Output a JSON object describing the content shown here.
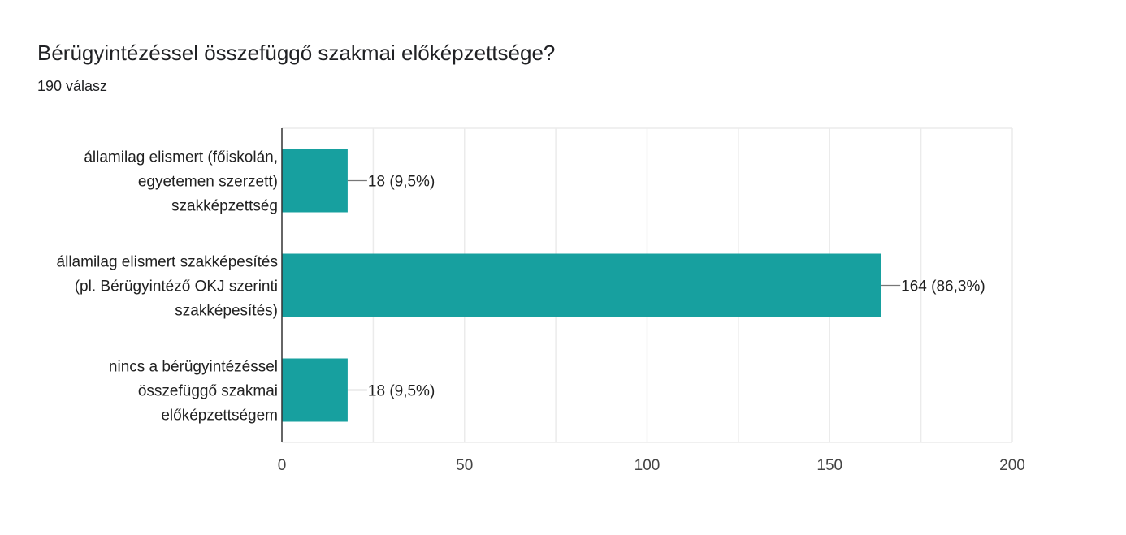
{
  "header": {
    "title": "Bérügyintézéssel összefüggő szakmai előképzettsége?",
    "subtitle": "190 válasz"
  },
  "chart_data": {
    "type": "bar",
    "orientation": "horizontal",
    "categories": [
      [
        "államilag elismert (főiskolán,",
        "egyetemen szerzett)",
        "szakképzettség"
      ],
      [
        "államilag elismert szakképesítés",
        "(pl. Bérügyintéző OKJ szerinti",
        "szakképesítés)"
      ],
      [
        "nincs a bérügyintézéssel",
        "összefüggő szakmai",
        "előképzettségem"
      ]
    ],
    "values": [
      18,
      164,
      18
    ],
    "data_labels": [
      "18 (9,5%)",
      "164 (86,3%)",
      "18 (9,5%)"
    ],
    "xlim": [
      0,
      200
    ],
    "xticks": [
      0,
      50,
      100,
      150,
      200
    ],
    "grid": true,
    "colors": {
      "bar": "#17A09F",
      "grid": "#ebebeb",
      "axis": "#333333",
      "text": "#212121",
      "tick_text": "#444444"
    }
  }
}
